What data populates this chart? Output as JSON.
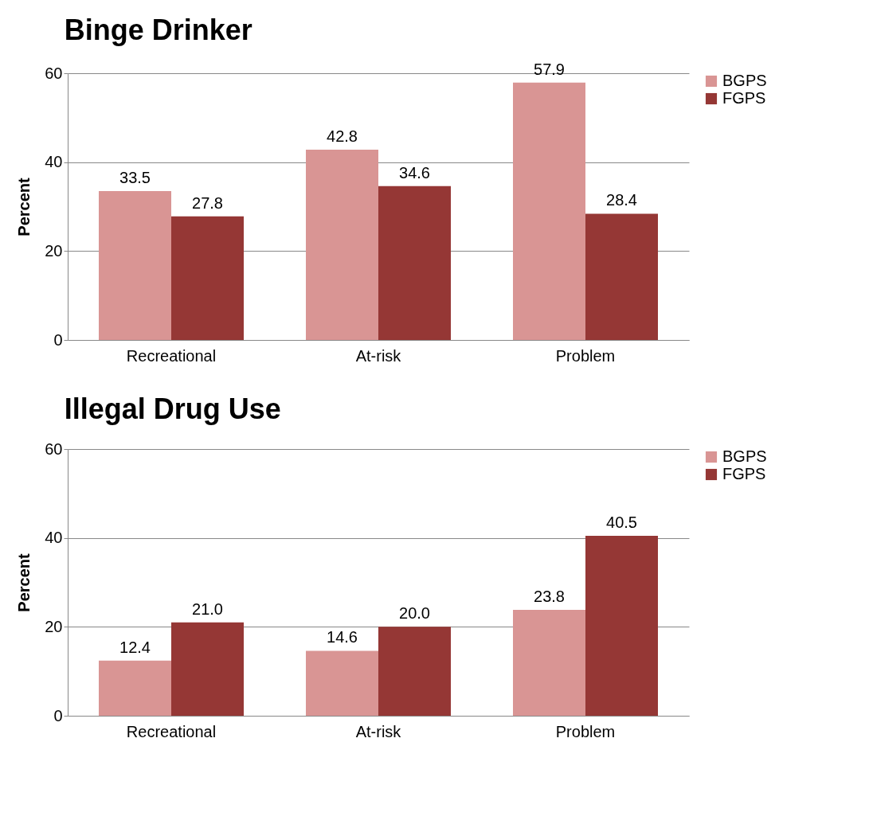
{
  "chart_data": [
    {
      "type": "bar",
      "title": "Binge Drinker",
      "ylabel": "Percent",
      "categories": [
        "Recreational",
        "At-risk",
        "Problem"
      ],
      "ylim": [
        0,
        60
      ],
      "yticks": [
        0,
        20,
        40,
        60
      ],
      "grid": "y",
      "legend": "right",
      "series": [
        {
          "name": "BGPS",
          "color": "#d99594",
          "values": [
            33.5,
            42.8,
            57.9
          ],
          "value_labels": [
            "33.5",
            "42.8",
            "57.9"
          ]
        },
        {
          "name": "FGPS",
          "color": "#953735",
          "values": [
            27.8,
            34.6,
            28.4
          ],
          "value_labels": [
            "27.8",
            "34.6",
            "28.4"
          ]
        }
      ]
    },
    {
      "type": "bar",
      "title": "Illegal Drug Use",
      "ylabel": "Percent",
      "categories": [
        "Recreational",
        "At-risk",
        "Problem"
      ],
      "ylim": [
        0,
        60
      ],
      "yticks": [
        0,
        20,
        40,
        60
      ],
      "grid": "y",
      "legend": "right",
      "series": [
        {
          "name": "BGPS",
          "color": "#d99594",
          "values": [
            12.4,
            14.6,
            23.8
          ],
          "value_labels": [
            "12.4",
            "14.6",
            "23.8"
          ]
        },
        {
          "name": "FGPS",
          "color": "#953735",
          "values": [
            21.0,
            20.0,
            40.5
          ],
          "value_labels": [
            "21.0",
            "20.0",
            "40.5"
          ]
        }
      ]
    }
  ]
}
